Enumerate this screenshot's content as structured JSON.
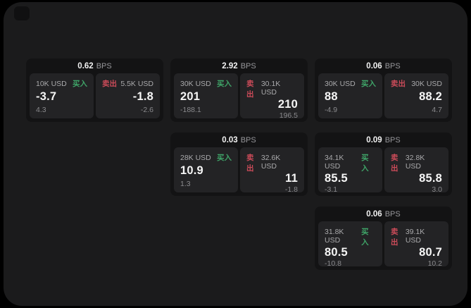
{
  "colors": {
    "background": "#000000",
    "frame": "#1b1b1c",
    "card": "#131314",
    "panel": "#232325",
    "buy_green": "#3fa468",
    "sell_red": "#cb4b59"
  },
  "cards": [
    {
      "bps_value": "0.62",
      "bps_unit": "BPS",
      "buy": {
        "amount": "10K USD",
        "side_label": "买入",
        "price": "-3.7",
        "delta": "4.3"
      },
      "sell": {
        "side_label": "卖出",
        "amount": "5.5K USD",
        "price": "-1.8",
        "delta": "-2.6"
      }
    },
    {
      "bps_value": "2.92",
      "bps_unit": "BPS",
      "buy": {
        "amount": "30K USD",
        "side_label": "买入",
        "price": "201",
        "delta": "-188.1"
      },
      "sell": {
        "side_label": "卖出",
        "amount": "30.1K USD",
        "price": "210",
        "delta": "196.5"
      }
    },
    {
      "bps_value": "0.06",
      "bps_unit": "BPS",
      "buy": {
        "amount": "30K USD",
        "side_label": "买入",
        "price": "88",
        "delta": "-4.9"
      },
      "sell": {
        "side_label": "卖出",
        "amount": "30K USD",
        "price": "88.2",
        "delta": "4.7"
      }
    },
    {
      "bps_value": "0.03",
      "bps_unit": "BPS",
      "buy": {
        "amount": "28K USD",
        "side_label": "买入",
        "price": "10.9",
        "delta": "1.3"
      },
      "sell": {
        "side_label": "卖出",
        "amount": "32.6K USD",
        "price": "11",
        "delta": "-1.8"
      }
    },
    {
      "bps_value": "0.09",
      "bps_unit": "BPS",
      "buy": {
        "amount": "34.1K USD",
        "side_label": "买入",
        "price": "85.5",
        "delta": "-3.1"
      },
      "sell": {
        "side_label": "卖出",
        "amount": "32.8K USD",
        "price": "85.8",
        "delta": "3.0"
      }
    },
    {
      "bps_value": "0.06",
      "bps_unit": "BPS",
      "buy": {
        "amount": "31.8K USD",
        "side_label": "买入",
        "price": "80.5",
        "delta": "-10.8"
      },
      "sell": {
        "side_label": "卖出",
        "amount": "39.1K USD",
        "price": "80.7",
        "delta": "10.2"
      }
    }
  ]
}
